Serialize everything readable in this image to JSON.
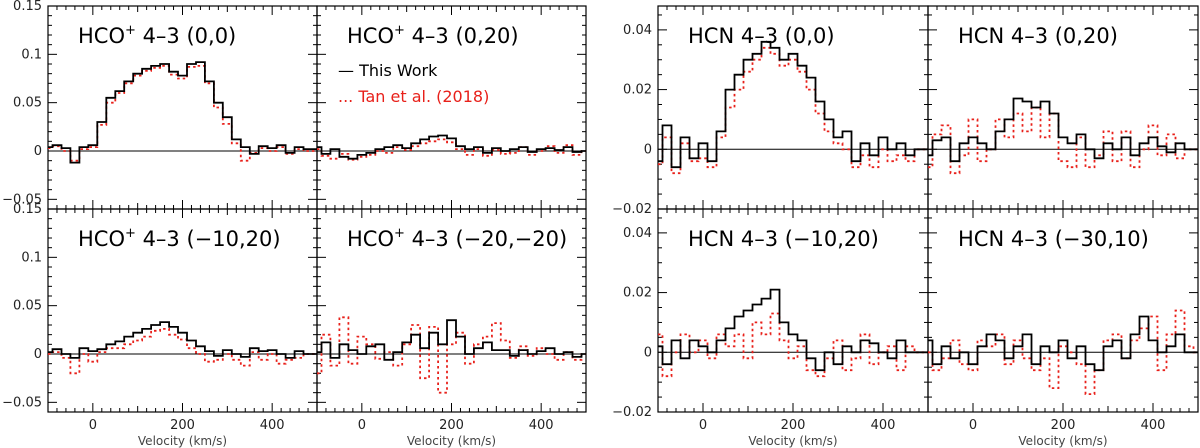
{
  "chart_data": {
    "type": "line",
    "figure_style": "step spectra, 2x2 panel grids",
    "legend": [
      {
        "label": "This Work",
        "color": "#000000",
        "style": "solid"
      },
      {
        "label": "Tan et al. (2018)",
        "color": "#e8201a",
        "style": "dotted"
      }
    ],
    "legend_marks": {
      "this_work": "—",
      "tan": "..."
    },
    "groups": [
      {
        "id": "hco",
        "molecule": "HCO",
        "superscript": "+",
        "transition": "4–3",
        "ylim": [
          -0.06,
          0.15
        ],
        "yticks": [
          -0.05,
          0,
          0.05,
          0.1,
          0.15
        ],
        "ytick_labels": [
          "−0.05",
          "0",
          "0.05",
          "0.1",
          "0.15"
        ],
        "xlim": [
          -100,
          500
        ],
        "xticks": [
          0,
          200,
          400
        ],
        "xtick_labels": [
          "0",
          "200",
          "400"
        ],
        "xlabel": "Velocity (km/s)",
        "panels": [
          {
            "offset": "(0,0)",
            "x": [
              -100,
              -80,
              -60,
              -40,
              -20,
              0,
              20,
              40,
              60,
              80,
              100,
              120,
              140,
              160,
              180,
              200,
              220,
              240,
              260,
              280,
              300,
              320,
              340,
              360,
              380,
              400,
              420,
              440,
              460,
              480,
              500
            ],
            "this_work": [
              0.004,
              0.006,
              0.003,
              -0.012,
              0.004,
              0.006,
              0.03,
              0.055,
              0.062,
              0.072,
              0.08,
              0.085,
              0.088,
              0.09,
              0.082,
              0.078,
              0.09,
              0.092,
              0.072,
              0.05,
              0.035,
              0.012,
              0.004,
              -0.003,
              0.005,
              0.003,
              0.006,
              -0.002,
              0.004,
              0.002,
              0.002
            ],
            "tan": [
              0.003,
              0.005,
              0.0,
              -0.01,
              0.002,
              0.004,
              0.027,
              0.05,
              0.06,
              0.07,
              0.078,
              0.083,
              0.086,
              0.088,
              0.079,
              0.075,
              0.087,
              0.088,
              0.07,
              0.045,
              0.028,
              0.008,
              -0.01,
              -0.002,
              0.003,
              0.0,
              0.004,
              -0.003,
              0.002,
              0.0,
              0.0
            ]
          },
          {
            "offset": "(0,20)",
            "x": [
              -100,
              -80,
              -60,
              -40,
              -20,
              0,
              20,
              40,
              60,
              80,
              100,
              120,
              140,
              160,
              180,
              200,
              220,
              240,
              260,
              280,
              300,
              320,
              340,
              360,
              380,
              400,
              420,
              440,
              460,
              480,
              500
            ],
            "this_work": [
              0.004,
              -0.003,
              0.002,
              -0.006,
              -0.008,
              -0.004,
              -0.002,
              0.002,
              0.004,
              0.006,
              0.003,
              0.008,
              0.012,
              0.015,
              0.016,
              0.013,
              0.005,
              0.002,
              0.004,
              -0.002,
              0.003,
              0.0,
              0.002,
              0.004,
              -0.001,
              0.002,
              0.003,
              0.001,
              0.004,
              -0.001,
              0.0
            ],
            "tan": [
              0.002,
              -0.005,
              -0.008,
              -0.003,
              -0.009,
              -0.006,
              -0.004,
              0.0,
              -0.002,
              0.004,
              0.001,
              0.005,
              0.008,
              0.01,
              0.012,
              0.009,
              0.002,
              -0.004,
              0.002,
              -0.005,
              0.001,
              -0.003,
              -0.002,
              0.004,
              -0.004,
              0.0,
              0.005,
              -0.002,
              0.006,
              -0.004,
              0.0
            ]
          },
          {
            "offset": "(−10,20)",
            "x": [
              -100,
              -80,
              -60,
              -40,
              -20,
              0,
              20,
              40,
              60,
              80,
              100,
              120,
              140,
              160,
              180,
              200,
              220,
              240,
              260,
              280,
              300,
              320,
              340,
              360,
              380,
              400,
              420,
              440,
              460,
              480,
              500
            ],
            "this_work": [
              0.002,
              0.005,
              0.0,
              -0.004,
              0.006,
              0.003,
              0.005,
              0.01,
              0.013,
              0.018,
              0.022,
              0.026,
              0.03,
              0.033,
              0.028,
              0.022,
              0.014,
              0.008,
              0.003,
              -0.002,
              0.004,
              0.0,
              -0.003,
              0.006,
              0.003,
              0.004,
              0.0,
              -0.004,
              0.003,
              0.0,
              0.0
            ],
            "tan": [
              0.0,
              0.002,
              -0.004,
              -0.02,
              0.0,
              -0.008,
              0.002,
              0.006,
              0.006,
              0.01,
              0.014,
              0.018,
              0.024,
              0.026,
              0.02,
              0.015,
              0.006,
              0.0,
              -0.008,
              -0.006,
              0.0,
              -0.006,
              -0.012,
              0.002,
              -0.006,
              0.0,
              -0.01,
              -0.006,
              -0.004,
              0.0,
              0.0
            ]
          },
          {
            "offset": "(−20,−20)",
            "x": [
              -100,
              -80,
              -60,
              -40,
              -20,
              0,
              20,
              40,
              60,
              80,
              100,
              120,
              140,
              160,
              180,
              200,
              220,
              240,
              260,
              280,
              300,
              320,
              340,
              360,
              380,
              400,
              420,
              440,
              460,
              480,
              500
            ],
            "this_work": [
              0.002,
              0.012,
              -0.004,
              0.01,
              0.004,
              0.0,
              0.008,
              0.01,
              -0.006,
              0.002,
              0.012,
              0.02,
              0.006,
              0.022,
              0.01,
              0.035,
              0.018,
              0.0,
              0.006,
              0.012,
              0.004,
              0.004,
              -0.002,
              0.004,
              0.0,
              0.003,
              0.006,
              0.0,
              0.002,
              -0.003,
              0.0
            ],
            "tan": [
              -0.02,
              0.02,
              -0.012,
              0.038,
              -0.01,
              0.018,
              0.01,
              -0.005,
              0.002,
              -0.012,
              0.01,
              0.03,
              -0.025,
              0.028,
              -0.04,
              0.01,
              0.022,
              -0.01,
              0.01,
              0.018,
              0.032,
              0.014,
              -0.004,
              0.008,
              -0.002,
              0.006,
              0.0,
              -0.006,
              0.002,
              -0.006,
              0.0
            ]
          }
        ]
      },
      {
        "id": "hcn",
        "molecule": "HCN",
        "superscript": "",
        "transition": "4–3",
        "ylim": [
          -0.02,
          0.048
        ],
        "yticks": [
          -0.02,
          0,
          0.02,
          0.04
        ],
        "ytick_labels": [
          "−0.02",
          "0",
          "0.02",
          "0.04"
        ],
        "xlim": [
          -100,
          500
        ],
        "xticks": [
          0,
          200,
          400
        ],
        "xtick_labels": [
          "0",
          "200",
          "400"
        ],
        "xlabel": "Velocity (km/s)",
        "panels": [
          {
            "offset": "(0,0)",
            "x": [
              -100,
              -80,
              -60,
              -40,
              -20,
              0,
              20,
              40,
              60,
              80,
              100,
              120,
              140,
              160,
              180,
              200,
              220,
              240,
              260,
              280,
              300,
              320,
              340,
              360,
              380,
              400,
              420,
              440,
              460,
              480,
              500
            ],
            "this_work": [
              -0.004,
              0.008,
              -0.006,
              0.004,
              -0.003,
              0.002,
              -0.004,
              0.006,
              0.02,
              0.025,
              0.03,
              0.032,
              0.036,
              0.034,
              0.03,
              0.032,
              0.028,
              0.024,
              0.016,
              0.01,
              0.004,
              0.006,
              -0.004,
              0.002,
              -0.002,
              0.004,
              0.0,
              0.002,
              -0.002,
              0.0,
              0.0
            ],
            "tan": [
              -0.005,
              0.004,
              -0.008,
              0.002,
              -0.004,
              -0.003,
              -0.006,
              0.004,
              0.014,
              0.02,
              0.026,
              0.03,
              0.034,
              0.032,
              0.028,
              0.03,
              0.026,
              0.02,
              0.012,
              0.006,
              0.002,
              0.0,
              -0.006,
              -0.002,
              -0.006,
              0.0,
              -0.004,
              -0.002,
              -0.004,
              0.0,
              0.0
            ]
          },
          {
            "offset": "(0,20)",
            "x": [
              -100,
              -80,
              -60,
              -40,
              -20,
              0,
              20,
              40,
              60,
              80,
              100,
              120,
              140,
              160,
              180,
              200,
              220,
              240,
              260,
              280,
              300,
              320,
              340,
              360,
              380,
              400,
              420,
              440,
              460,
              480,
              500
            ],
            "this_work": [
              -0.002,
              0.003,
              0.004,
              -0.004,
              0.002,
              0.004,
              0.002,
              0.0,
              0.006,
              0.01,
              0.017,
              0.016,
              0.014,
              0.016,
              0.012,
              0.004,
              0.002,
              0.005,
              0.0,
              -0.003,
              0.002,
              0.0,
              0.004,
              -0.002,
              0.002,
              0.004,
              0.001,
              -0.001,
              0.002,
              0.0,
              0.0
            ],
            "tan": [
              -0.006,
              0.005,
              0.008,
              -0.008,
              -0.002,
              0.01,
              -0.004,
              0.0,
              0.01,
              0.004,
              0.012,
              0.006,
              0.014,
              0.004,
              0.012,
              -0.004,
              -0.006,
              0.004,
              -0.006,
              -0.002,
              0.006,
              -0.004,
              0.006,
              -0.006,
              0.0,
              0.008,
              -0.002,
              0.005,
              -0.003,
              0.0,
              0.0
            ]
          },
          {
            "offset": "(−10,20)",
            "x": [
              -100,
              -80,
              -60,
              -40,
              -20,
              0,
              20,
              40,
              60,
              80,
              100,
              120,
              140,
              160,
              180,
              200,
              220,
              240,
              260,
              280,
              300,
              320,
              340,
              360,
              380,
              400,
              420,
              440,
              460,
              480,
              500
            ],
            "this_work": [
              0.002,
              -0.004,
              0.004,
              -0.002,
              0.004,
              0.002,
              0.0,
              0.004,
              0.008,
              0.012,
              0.014,
              0.016,
              0.018,
              0.021,
              0.01,
              0.006,
              0.004,
              -0.002,
              -0.006,
              0.0,
              -0.004,
              0.002,
              0.0,
              0.004,
              0.003,
              0.0,
              -0.002,
              0.004,
              0.0,
              0.0,
              0.0
            ],
            "tan": [
              0.006,
              -0.008,
              0.0,
              0.006,
              0.0,
              0.004,
              -0.002,
              0.006,
              0.002,
              0.006,
              -0.002,
              0.01,
              0.006,
              0.013,
              0.004,
              -0.002,
              0.002,
              -0.006,
              -0.008,
              -0.002,
              0.004,
              -0.006,
              -0.002,
              0.006,
              -0.004,
              0.0,
              0.002,
              -0.006,
              0.002,
              0.0,
              0.0
            ]
          },
          {
            "offset": "(−30,10)",
            "x": [
              -100,
              -80,
              -60,
              -40,
              -20,
              0,
              20,
              40,
              60,
              80,
              100,
              120,
              140,
              160,
              180,
              200,
              220,
              240,
              260,
              280,
              300,
              320,
              340,
              360,
              380,
              400,
              420,
              440,
              460,
              480,
              500
            ],
            "this_work": [
              0.004,
              -0.004,
              0.002,
              -0.002,
              0.0,
              -0.004,
              0.002,
              0.006,
              0.004,
              -0.002,
              0.002,
              0.006,
              -0.004,
              0.002,
              0.0,
              0.004,
              -0.002,
              0.002,
              -0.004,
              -0.006,
              0.002,
              0.004,
              -0.002,
              0.006,
              0.012,
              0.004,
              0.0,
              0.002,
              0.006,
              0.0,
              0.0
            ],
            "tan": [
              0.0,
              -0.006,
              -0.002,
              0.004,
              -0.004,
              -0.006,
              0.004,
              0.002,
              0.006,
              -0.004,
              0.004,
              -0.002,
              -0.006,
              -0.002,
              -0.012,
              0.002,
              0.0,
              -0.004,
              -0.014,
              -0.006,
              0.004,
              0.006,
              -0.002,
              0.004,
              0.008,
              0.012,
              -0.006,
              0.006,
              0.014,
              0.002,
              0.0
            ]
          }
        ]
      }
    ]
  }
}
